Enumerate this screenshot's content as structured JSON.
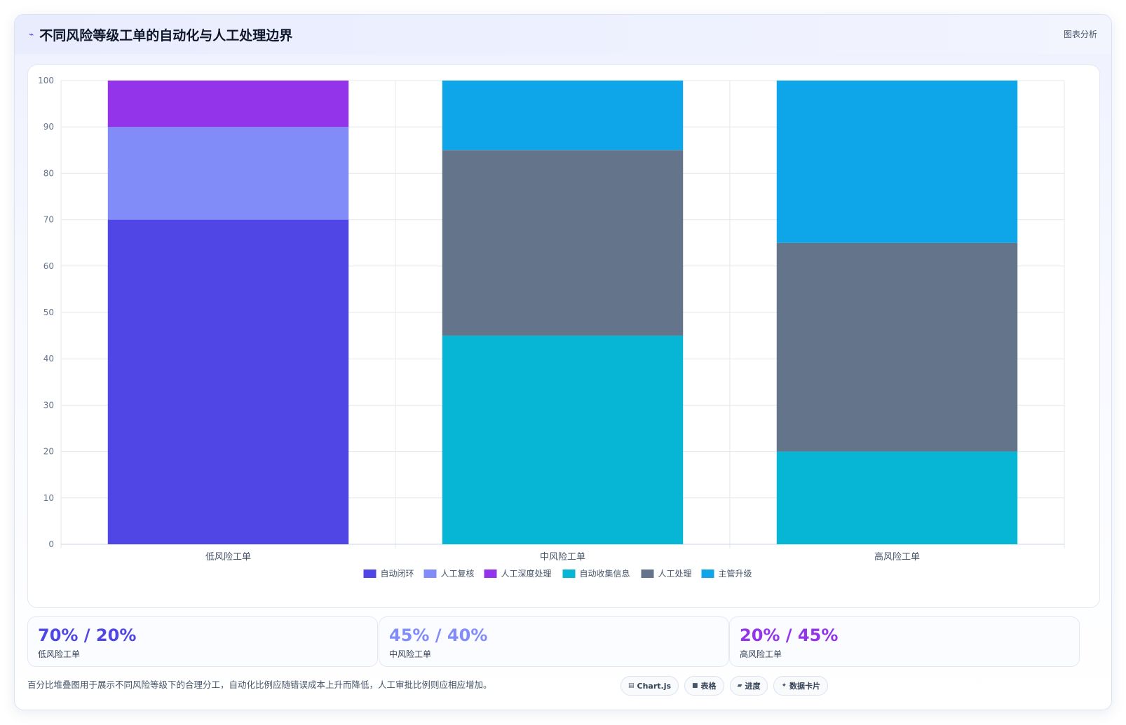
{
  "header": {
    "icon": "chart-line-icon",
    "title": "不同风险等级工单的自动化与人工处理边界",
    "badge": "图表分析"
  },
  "colors": {
    "auto_close": "#4f46e5",
    "manual_review": "#818cf8",
    "manual_deep": "#9333ea",
    "auto_collect": "#06b6d4",
    "manual_handle": "#64748b",
    "supervisor": "#0ea5e9"
  },
  "chart_data": {
    "type": "bar",
    "stacked": true,
    "categories": [
      "低风险工单",
      "中风险工单",
      "高风险工单"
    ],
    "ylim": [
      0,
      100
    ],
    "yticks": [
      0,
      10,
      20,
      30,
      40,
      50,
      60,
      70,
      80,
      90,
      100
    ],
    "grid": true,
    "legend_position": "bottom",
    "series": [
      {
        "name": "自动闭环",
        "color": "#4f46e5",
        "values": [
          70,
          0,
          0
        ]
      },
      {
        "name": "人工复核",
        "color": "#818cf8",
        "values": [
          20,
          0,
          0
        ]
      },
      {
        "name": "人工深度处理",
        "color": "#9333ea",
        "values": [
          10,
          0,
          0
        ]
      },
      {
        "name": "自动收集信息",
        "color": "#06b6d4",
        "values": [
          0,
          45,
          20
        ]
      },
      {
        "name": "人工处理",
        "color": "#64748b",
        "values": [
          0,
          40,
          45
        ]
      },
      {
        "name": "主管升级",
        "color": "#0ea5e9",
        "values": [
          0,
          15,
          35
        ]
      }
    ]
  },
  "stats": [
    {
      "value": "70% / 20%",
      "label": "低风险工单",
      "color": "#4f46e5"
    },
    {
      "value": "45% / 40%",
      "label": "中风险工单",
      "color": "#818cf8"
    },
    {
      "value": "20% / 45%",
      "label": "高风险工单",
      "color": "#9333ea"
    }
  ],
  "footer": {
    "note": "百分比堆叠图用于展示不同风险等级下的合理分工，自动化比例应随错误成本上升而降低，人工审批比例则应相应增加。"
  },
  "chips": [
    {
      "icon": "▤",
      "icon_name": "chart-icon",
      "label": "Chart.js"
    },
    {
      "icon": "■",
      "icon_name": "table-icon",
      "label": "表格"
    },
    {
      "icon": "▰",
      "icon_name": "progress-icon",
      "label": "进度"
    },
    {
      "icon": "✦",
      "icon_name": "card-icon",
      "label": "数据卡片"
    }
  ]
}
